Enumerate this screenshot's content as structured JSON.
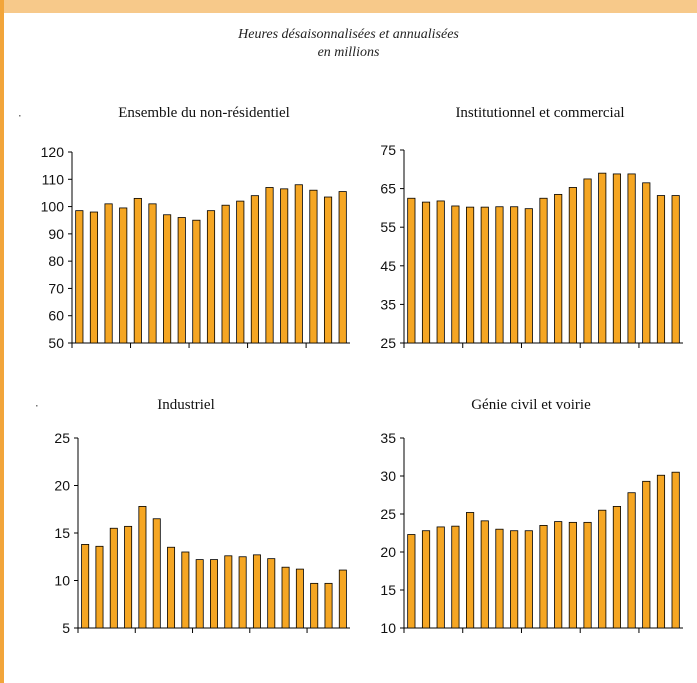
{
  "colors": {
    "bar_fill": "#f5a623",
    "band": "#f7c98a",
    "border": "#f2a53a"
  },
  "subtitle": {
    "line1": "Heures désaisonnalisées et annualisées",
    "line2": "en millions"
  },
  "chart_data": [
    {
      "type": "bar",
      "title": "Ensemble du non-résidentiel",
      "ylim": [
        50,
        120
      ],
      "yticks": [
        50,
        60,
        70,
        80,
        90,
        100,
        110,
        120
      ],
      "values": [
        98.5,
        98,
        101,
        99.5,
        103,
        101,
        97,
        96,
        95,
        98.5,
        100.5,
        102,
        104,
        107,
        106.5,
        108,
        106,
        103.5,
        105.5
      ],
      "grid": false
    },
    {
      "type": "bar",
      "title": "Institutionnel et commercial",
      "ylim": [
        25,
        75
      ],
      "yticks": [
        25,
        35,
        45,
        55,
        65,
        75
      ],
      "values": [
        62.5,
        61.5,
        61.8,
        60.5,
        60.2,
        60.2,
        60.3,
        60.3,
        59.8,
        62.5,
        63.5,
        65.3,
        67.5,
        69,
        68.8,
        68.8,
        66.5,
        63.2,
        63.2
      ],
      "grid": false
    },
    {
      "type": "bar",
      "title": "Industriel",
      "ylim": [
        5,
        25
      ],
      "yticks": [
        5,
        10,
        15,
        20,
        25
      ],
      "values": [
        13.8,
        13.6,
        15.5,
        15.7,
        17.8,
        16.5,
        13.5,
        13,
        12.2,
        12.2,
        12.6,
        12.5,
        12.7,
        12.3,
        11.4,
        11.2,
        9.7,
        9.7,
        11.1
      ],
      "grid": false
    },
    {
      "type": "bar",
      "title": "Génie civil et voirie",
      "ylim": [
        10,
        35
      ],
      "yticks": [
        10,
        15,
        20,
        25,
        30,
        35
      ],
      "values": [
        22.3,
        22.8,
        23.3,
        23.4,
        25.2,
        24.1,
        23,
        22.8,
        22.8,
        23.5,
        24,
        23.9,
        23.9,
        25.5,
        26,
        27.8,
        29.3,
        30.1,
        30.5
      ],
      "grid": false
    }
  ]
}
